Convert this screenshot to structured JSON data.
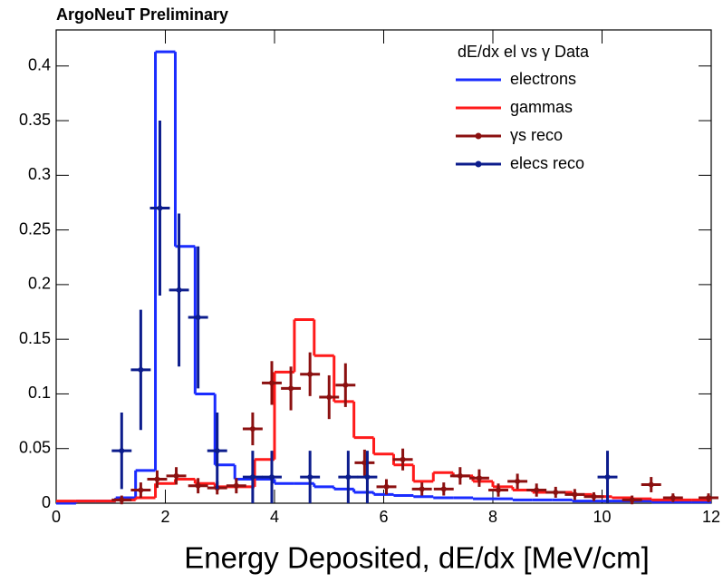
{
  "chart_data": {
    "type": "histogram",
    "title": "ArgoNeuT Preliminary",
    "x_label": "Energy Deposited, dE/dx [MeV/cm]",
    "legend_title": "dE/dx  el vs γ Data",
    "legend_position": "upper right",
    "xlim": [
      0,
      12
    ],
    "ylim": [
      0,
      0.433
    ],
    "xticks": [
      0,
      2,
      4,
      6,
      8,
      10,
      12
    ],
    "yticks": [
      0,
      0.05,
      0.1,
      0.15,
      0.2,
      0.25,
      0.3,
      0.35,
      0.4
    ],
    "bins": [
      0,
      0.364,
      0.727,
      1.091,
      1.455,
      1.818,
      2.182,
      2.545,
      2.909,
      3.273,
      3.636,
      4.0,
      4.364,
      4.727,
      5.091,
      5.455,
      5.818,
      6.182,
      6.545,
      6.909,
      7.273,
      7.636,
      8.0,
      8.364,
      8.727,
      9.091,
      9.455,
      9.818,
      10.182,
      10.545,
      10.909,
      11.273,
      11.636,
      12.0
    ],
    "series": [
      {
        "name": "electrons",
        "style": "step",
        "color": "#1a2cff",
        "values": [
          0,
          0.002,
          0.002,
          0.005,
          0.03,
          0.413,
          0.235,
          0.1,
          0.035,
          0.022,
          0.022,
          0.018,
          0.018,
          0.015,
          0.013,
          0.01,
          0.008,
          0.007,
          0.006,
          0.005,
          0.005,
          0.004,
          0.004,
          0.003,
          0.003,
          0.003,
          0.002,
          0.002,
          0.002,
          0.002,
          0.001,
          0.001,
          0.001
        ]
      },
      {
        "name": "gammas",
        "style": "step",
        "color": "#ff1a1a",
        "values": [
          0.002,
          0.002,
          0.002,
          0.003,
          0.005,
          0.018,
          0.022,
          0.018,
          0.015,
          0.015,
          0.04,
          0.12,
          0.168,
          0.135,
          0.093,
          0.06,
          0.045,
          0.035,
          0.02,
          0.028,
          0.025,
          0.02,
          0.015,
          0.012,
          0.01,
          0.01,
          0.008,
          0.006,
          0.005,
          0.004,
          0.003,
          0.003,
          0.003
        ]
      },
      {
        "name": "γs reco",
        "style": "points",
        "color": "#8b1010",
        "x": [
          1.2,
          1.55,
          1.85,
          2.2,
          2.6,
          2.95,
          3.3,
          3.6,
          3.95,
          4.3,
          4.65,
          5.0,
          5.3,
          5.65,
          6.05,
          6.35,
          6.7,
          7.1,
          7.4,
          7.75,
          8.1,
          8.45,
          8.8,
          9.15,
          9.5,
          9.85,
          10.55,
          10.9,
          11.3,
          11.95
        ],
        "values": [
          0.003,
          0.012,
          0.022,
          0.025,
          0.016,
          0.014,
          0.016,
          0.068,
          0.11,
          0.105,
          0.118,
          0.097,
          0.108,
          0.037,
          0.015,
          0.04,
          0.013,
          0.013,
          0.025,
          0.023,
          0.012,
          0.02,
          0.012,
          0.01,
          0.008,
          0.006,
          0.003,
          0.017,
          0.005,
          0.005
        ],
        "errors": [
          0.004,
          0.007,
          0.008,
          0.008,
          0.007,
          0.006,
          0.007,
          0.015,
          0.02,
          0.02,
          0.02,
          0.02,
          0.02,
          0.012,
          0.007,
          0.01,
          0.006,
          0.006,
          0.008,
          0.008,
          0.006,
          0.007,
          0.006,
          0.005,
          0.005,
          0.004,
          0.004,
          0.007,
          0.004,
          0.004
        ]
      },
      {
        "name": "elecs reco",
        "style": "points",
        "color": "#0c1c8c",
        "x": [
          1.2,
          1.55,
          1.9,
          2.25,
          2.6,
          2.95,
          3.6,
          3.95,
          4.65,
          5.35,
          5.7,
          10.1
        ],
        "values": [
          0.048,
          0.122,
          0.27,
          0.195,
          0.17,
          0.048,
          0.024,
          0.024,
          0.024,
          0.024,
          0.024,
          0.024
        ],
        "errors": [
          0.035,
          0.055,
          0.08,
          0.07,
          0.065,
          0.035,
          0.024,
          0.024,
          0.024,
          0.024,
          0.024,
          0.024
        ]
      }
    ]
  }
}
